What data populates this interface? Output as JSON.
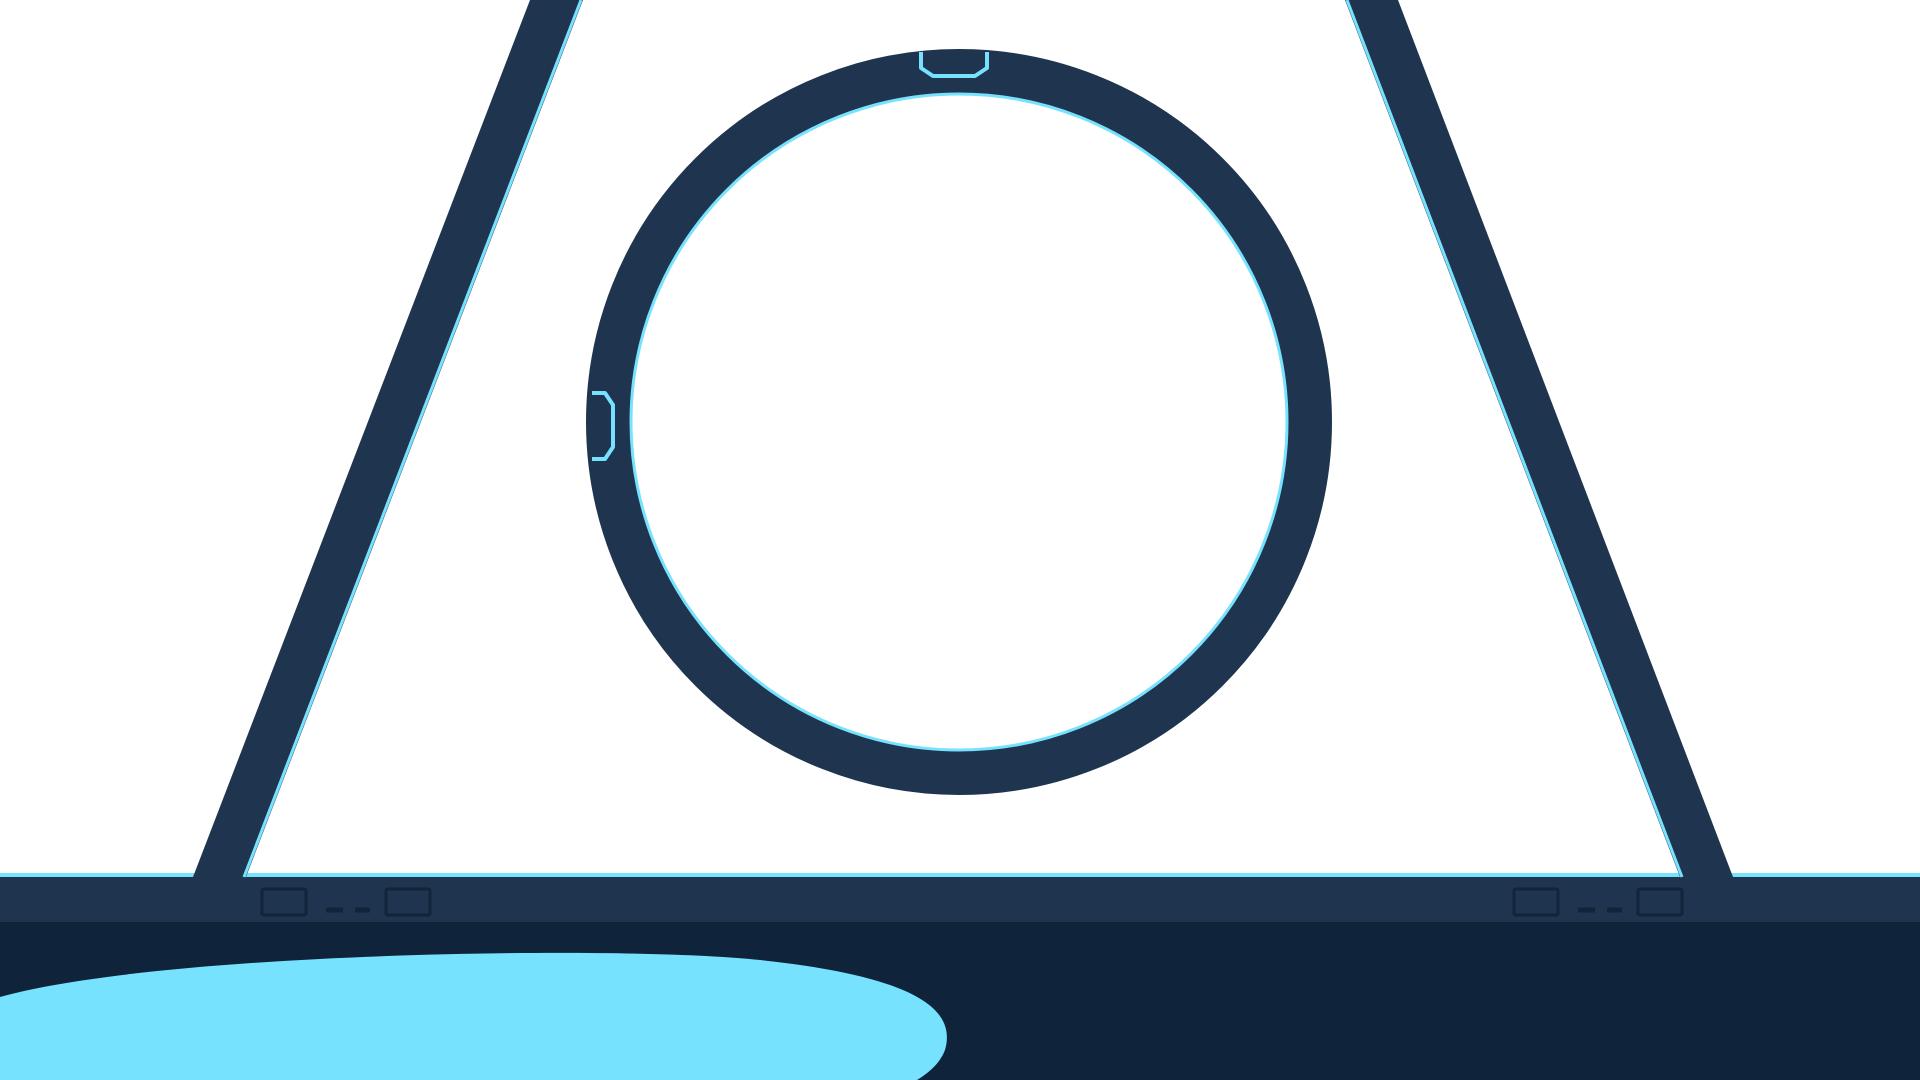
{
  "colors": {
    "background": "#ffffff",
    "structure": "#1f344f",
    "accent": "#77e2fe",
    "floor": "#0f243b",
    "slot_stroke": "#11253a"
  },
  "icons": {
    "portal_ring": "ring-icon",
    "left_leg": "beam-icon",
    "right_leg": "beam-icon",
    "floor_spot": "light-pool-icon",
    "base_vent": "vent-panel-icon"
  }
}
